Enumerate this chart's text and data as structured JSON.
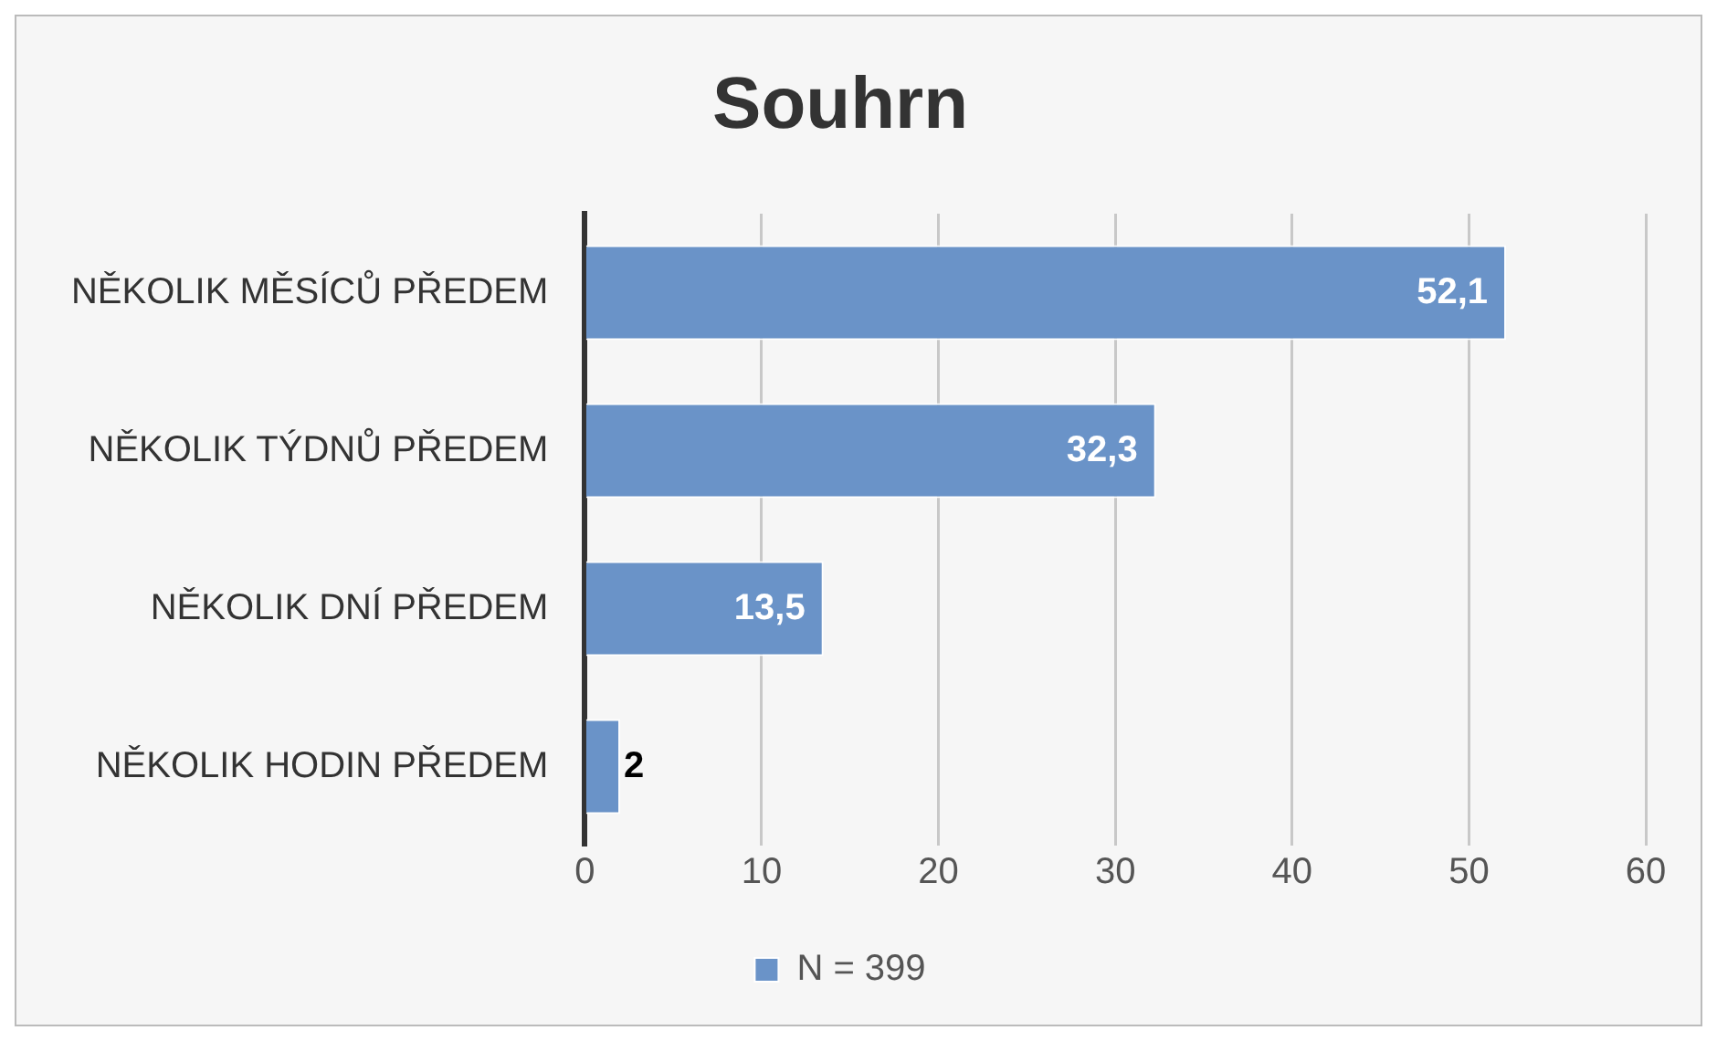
{
  "chart_data": {
    "type": "bar",
    "orientation": "horizontal",
    "title": "Souhrn",
    "categories": [
      "NĚKOLIK MĚSÍCŮ PŘEDEM",
      "NĚKOLIK TÝDNŮ PŘEDEM",
      "NĚKOLIK DNÍ PŘEDEM",
      "NĚKOLIK HODIN PŘEDEM"
    ],
    "series": [
      {
        "name": "N = 399",
        "color": "#6a93c8",
        "values": [
          52.1,
          32.3,
          13.5,
          2
        ],
        "value_labels": [
          "52,1",
          "32,3",
          "13,5",
          "2"
        ]
      }
    ],
    "xlim": [
      0,
      60
    ],
    "xticks": [
      0,
      10,
      20,
      30,
      40,
      50,
      60
    ],
    "grid": "x",
    "legend": "bottom"
  }
}
